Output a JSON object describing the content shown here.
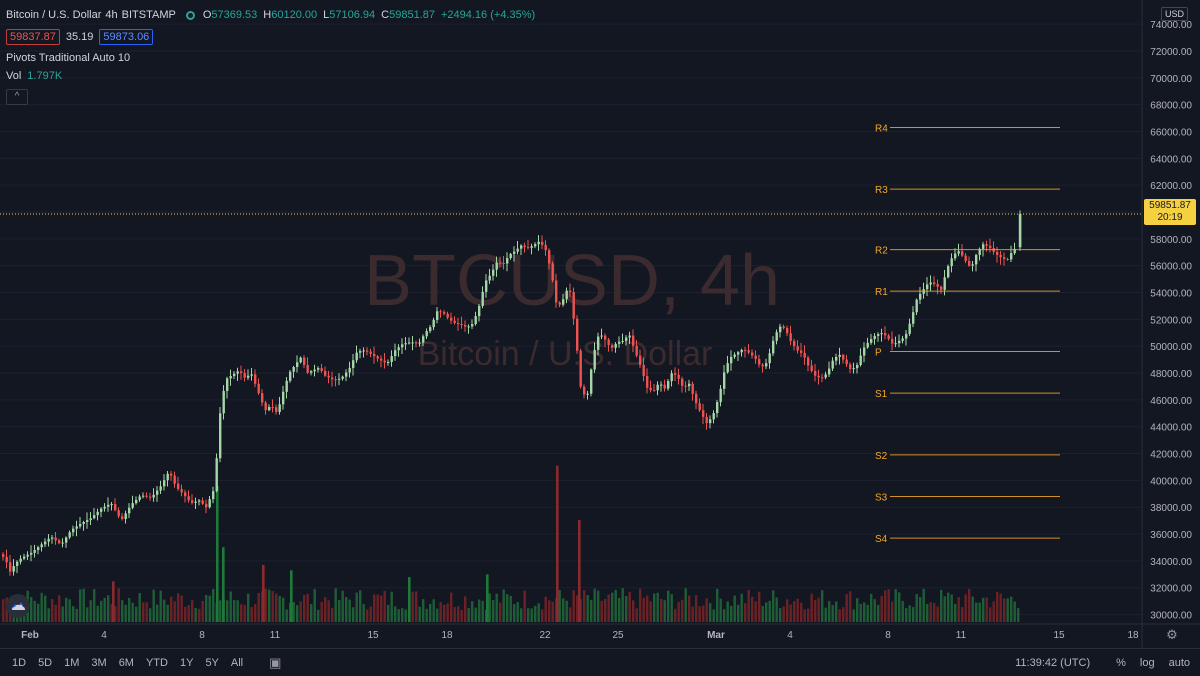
{
  "header": {
    "symbol": "Bitcoin / U.S. Dollar",
    "interval": "4h",
    "exchange": "BITSTAMP",
    "open_label": "O",
    "open": "57369.53",
    "high_label": "H",
    "high": "60120.00",
    "low_label": "L",
    "low": "57106.94",
    "close_label": "C",
    "close": "59851.87",
    "change": "+2494.16 (+4.35%)",
    "bid": "59837.87",
    "spread": "35.19",
    "ask": "59873.06",
    "indicator": "Pivots Traditional Auto 10",
    "vol_label": "Vol",
    "vol_value": "1.797K",
    "collapse_icon": "^"
  },
  "price_scale": {
    "currency": "USD",
    "last_price": "59851.87",
    "countdown": "20:19"
  },
  "bottom_bar": {
    "timeframes": [
      "1D",
      "5D",
      "1M",
      "3M",
      "6M",
      "YTD",
      "1Y",
      "5Y",
      "All"
    ],
    "time": "11:39:42 (UTC)",
    "percent": "%",
    "log": "log",
    "auto": "auto"
  },
  "colors": {
    "background": "#131722",
    "up": "#26a69a",
    "up_body": "#a5d6a7",
    "down": "#ef5350",
    "pivot": "#f5a623",
    "watermark": "#3b2a2e",
    "last_price": "#f5d142"
  },
  "chart_data": {
    "type": "candlestick",
    "title": "",
    "watermark_title": "BTCUSD, 4h",
    "watermark_subtitle": "Bitcoin / U.S. Dollar",
    "x_ticks": [
      "Feb",
      "4",
      "8",
      "11",
      "15",
      "18",
      "22",
      "25",
      "Mar",
      "4",
      "8",
      "11",
      "15",
      "18"
    ],
    "y_ticks": [
      30000,
      32000,
      34000,
      36000,
      38000,
      40000,
      42000,
      44000,
      46000,
      48000,
      50000,
      52000,
      54000,
      56000,
      58000,
      60000,
      62000,
      64000,
      66000,
      68000,
      70000,
      72000,
      74000
    ],
    "y_tick_labels": [
      "30000.00",
      "32000.00",
      "34000.00",
      "36000.00",
      "38000.00",
      "40000.00",
      "42000.00",
      "44000.00",
      "46000.00",
      "48000.00",
      "50000.00",
      "52000.00",
      "54000.00",
      "56000.00",
      "58000.00",
      "60000.00",
      "62000.00",
      "64000.00",
      "66000.00",
      "68000.00",
      "70000.00",
      "72000.00",
      "74000.00"
    ],
    "ylim": [
      29000,
      75500
    ],
    "pivots": [
      {
        "label": "R4",
        "value": 66300
      },
      {
        "label": "R3",
        "value": 61700
      },
      {
        "label": "R2",
        "value": 57200
      },
      {
        "label": "R1",
        "value": 54100
      },
      {
        "label": "P",
        "value": 49600
      },
      {
        "label": "S1",
        "value": 46500
      },
      {
        "label": "S2",
        "value": 41900
      },
      {
        "label": "S3",
        "value": 38800
      },
      {
        "label": "S4",
        "value": 35700
      }
    ],
    "last_price": 59851.87,
    "close_path": [
      [
        0,
        34500
      ],
      [
        5,
        34000
      ],
      [
        9,
        33200
      ],
      [
        14,
        33800
      ],
      [
        20,
        34200
      ],
      [
        30,
        34600
      ],
      [
        40,
        35200
      ],
      [
        50,
        35800
      ],
      [
        60,
        35200
      ],
      [
        70,
        36300
      ],
      [
        80,
        36800
      ],
      [
        90,
        37200
      ],
      [
        100,
        37900
      ],
      [
        110,
        38300
      ],
      [
        120,
        37000
      ],
      [
        130,
        38200
      ],
      [
        140,
        38900
      ],
      [
        150,
        38700
      ],
      [
        160,
        39600
      ],
      [
        168,
        40700
      ],
      [
        175,
        39500
      ],
      [
        182,
        39000
      ],
      [
        190,
        38300
      ],
      [
        198,
        38500
      ],
      [
        205,
        38000
      ],
      [
        212,
        39200
      ],
      [
        216,
        42000
      ],
      [
        220,
        46000
      ],
      [
        226,
        47600
      ],
      [
        232,
        47900
      ],
      [
        238,
        48200
      ],
      [
        244,
        47600
      ],
      [
        250,
        48000
      ],
      [
        256,
        46800
      ],
      [
        264,
        45200
      ],
      [
        270,
        45600
      ],
      [
        276,
        45000
      ],
      [
        282,
        46600
      ],
      [
        288,
        48000
      ],
      [
        294,
        48600
      ],
      [
        300,
        49200
      ],
      [
        306,
        48000
      ],
      [
        312,
        48200
      ],
      [
        318,
        48400
      ],
      [
        324,
        47800
      ],
      [
        332,
        47500
      ],
      [
        340,
        47600
      ],
      [
        348,
        48300
      ],
      [
        356,
        49600
      ],
      [
        364,
        49700
      ],
      [
        372,
        49300
      ],
      [
        378,
        49000
      ],
      [
        386,
        48700
      ],
      [
        394,
        49700
      ],
      [
        402,
        50200
      ],
      [
        410,
        50300
      ],
      [
        418,
        50200
      ],
      [
        424,
        51000
      ],
      [
        430,
        51500
      ],
      [
        436,
        52600
      ],
      [
        442,
        52500
      ],
      [
        448,
        52000
      ],
      [
        454,
        51700
      ],
      [
        460,
        51600
      ],
      [
        466,
        51400
      ],
      [
        472,
        51700
      ],
      [
        478,
        53000
      ],
      [
        484,
        54800
      ],
      [
        490,
        55400
      ],
      [
        496,
        56300
      ],
      [
        502,
        56100
      ],
      [
        508,
        56800
      ],
      [
        514,
        57100
      ],
      [
        520,
        57500
      ],
      [
        526,
        57300
      ],
      [
        532,
        57500
      ],
      [
        538,
        57800
      ],
      [
        544,
        57300
      ],
      [
        550,
        55600
      ],
      [
        556,
        52800
      ],
      [
        562,
        53500
      ],
      [
        568,
        54600
      ],
      [
        574,
        51200
      ],
      [
        580,
        46600
      ],
      [
        586,
        46200
      ],
      [
        592,
        49300
      ],
      [
        598,
        51000
      ],
      [
        604,
        50500
      ],
      [
        610,
        49800
      ],
      [
        616,
        50300
      ],
      [
        622,
        50400
      ],
      [
        628,
        50900
      ],
      [
        634,
        49600
      ],
      [
        640,
        48400
      ],
      [
        646,
        46900
      ],
      [
        652,
        46600
      ],
      [
        658,
        47300
      ],
      [
        664,
        46800
      ],
      [
        670,
        48000
      ],
      [
        676,
        47800
      ],
      [
        682,
        46900
      ],
      [
        688,
        47200
      ],
      [
        694,
        45900
      ],
      [
        700,
        45000
      ],
      [
        706,
        44200
      ],
      [
        712,
        44900
      ],
      [
        718,
        46300
      ],
      [
        724,
        48400
      ],
      [
        730,
        49200
      ],
      [
        736,
        49500
      ],
      [
        742,
        49800
      ],
      [
        748,
        49500
      ],
      [
        754,
        49100
      ],
      [
        760,
        48400
      ],
      [
        766,
        48800
      ],
      [
        772,
        50400
      ],
      [
        778,
        51500
      ],
      [
        784,
        51300
      ],
      [
        790,
        50300
      ],
      [
        796,
        49700
      ],
      [
        802,
        49400
      ],
      [
        808,
        48400
      ],
      [
        814,
        47800
      ],
      [
        820,
        47600
      ],
      [
        826,
        48000
      ],
      [
        832,
        49000
      ],
      [
        838,
        49400
      ],
      [
        844,
        48800
      ],
      [
        850,
        48200
      ],
      [
        856,
        48600
      ],
      [
        862,
        49800
      ],
      [
        868,
        50400
      ],
      [
        874,
        50800
      ],
      [
        880,
        51000
      ],
      [
        886,
        50700
      ],
      [
        892,
        50100
      ],
      [
        898,
        50400
      ],
      [
        904,
        50700
      ],
      [
        910,
        52000
      ],
      [
        916,
        53600
      ],
      [
        922,
        54200
      ],
      [
        928,
        54800
      ],
      [
        934,
        54600
      ],
      [
        940,
        54200
      ],
      [
        946,
        55800
      ],
      [
        952,
        56800
      ],
      [
        958,
        57100
      ],
      [
        964,
        56400
      ],
      [
        970,
        55800
      ],
      [
        976,
        57000
      ],
      [
        982,
        57600
      ],
      [
        988,
        57400
      ],
      [
        994,
        56900
      ],
      [
        1000,
        56600
      ],
      [
        1006,
        56400
      ],
      [
        1012,
        57200
      ],
      [
        1018,
        57400
      ],
      [
        1020,
        59850
      ]
    ],
    "volume_spikes": [
      {
        "x": 216,
        "v": 1.0,
        "up": true
      },
      {
        "x": 222,
        "v": 0.55,
        "up": true
      },
      {
        "x": 556,
        "v": 1.15,
        "up": false
      },
      {
        "x": 578,
        "v": 0.75,
        "up": false
      },
      {
        "x": 262,
        "v": 0.42,
        "up": false
      },
      {
        "x": 290,
        "v": 0.38,
        "up": true
      },
      {
        "x": 486,
        "v": 0.35,
        "up": true
      },
      {
        "x": 408,
        "v": 0.33,
        "up": true
      },
      {
        "x": 112,
        "v": 0.3,
        "up": false
      }
    ]
  }
}
